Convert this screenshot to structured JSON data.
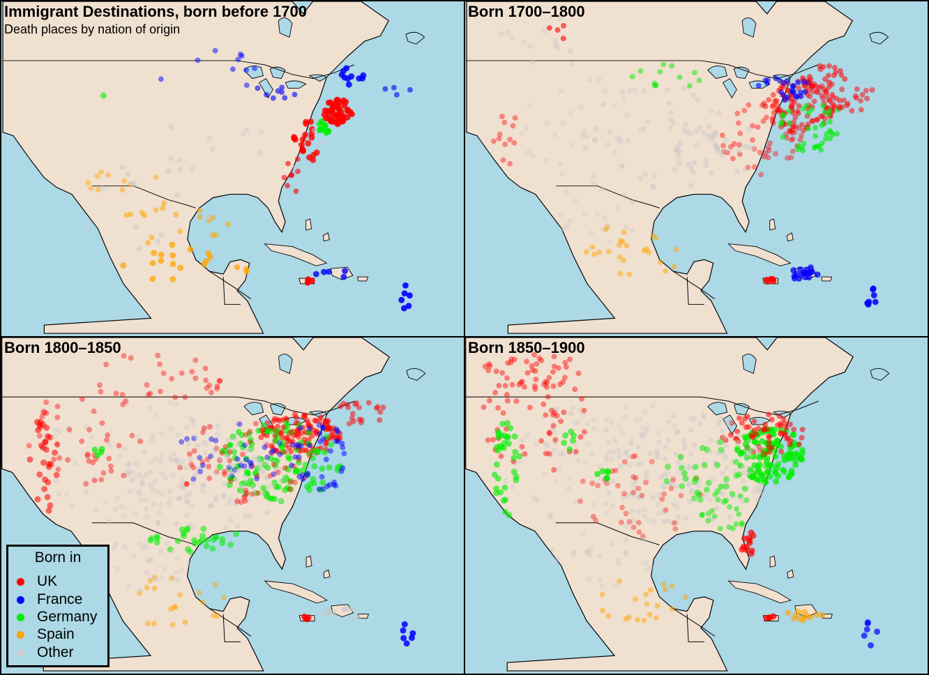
{
  "panels": [
    {
      "title": "Immigrant Destinations, born before 1700",
      "subtitle": "Death places by nation of origin",
      "era": "pre1700"
    },
    {
      "title": "Born 1700–1800",
      "subtitle": "",
      "era": "1700"
    },
    {
      "title": "Born 1800–1850",
      "subtitle": "",
      "era": "1800"
    },
    {
      "title": "Born 1850–1900",
      "subtitle": "",
      "era": "1850"
    }
  ],
  "legend": {
    "title": "Born in",
    "items": [
      {
        "label": "UK",
        "color": "#ff0000"
      },
      {
        "label": "France",
        "color": "#0000ff"
      },
      {
        "label": "Germany",
        "color": "#00ee00"
      },
      {
        "label": "Spain",
        "color": "#ffa500"
      },
      {
        "label": "Other",
        "color": "#cccccc"
      }
    ]
  },
  "colors": {
    "water": "#add8e6",
    "land": "#f0e0d0",
    "border": "#000000"
  }
}
